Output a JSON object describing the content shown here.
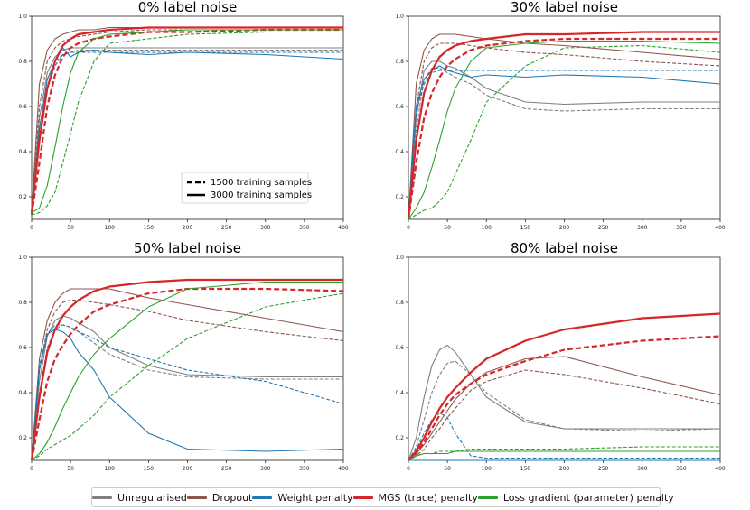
{
  "legend": {
    "items": [
      {
        "label": "Unregularised",
        "color": "#7f7f7f"
      },
      {
        "label": "Dropout",
        "color": "#8c564b"
      },
      {
        "label": "Weight penalty",
        "color": "#1f77b4"
      },
      {
        "label": "MGS (trace) penalty",
        "color": "#d62728"
      },
      {
        "label": "Loss gradient (parameter) penalty",
        "color": "#2ca02c"
      }
    ]
  },
  "style_legend": {
    "dashed": "1500 training samples",
    "solid": "3000 training samples"
  },
  "chart_data": [
    {
      "type": "line",
      "title": "0% label noise",
      "xlim": [
        0,
        400
      ],
      "ylim": [
        0.1,
        1.0
      ],
      "xticks": [
        0,
        50,
        100,
        150,
        200,
        250,
        300,
        350,
        400
      ],
      "yticks": [
        0.2,
        0.4,
        0.6,
        0.8,
        1.0
      ],
      "x": [
        0,
        10,
        20,
        30,
        40,
        50,
        60,
        80,
        100,
        150,
        200,
        300,
        400
      ],
      "series": [
        {
          "name": "Unregularised",
          "samples": 3000,
          "style": "solid",
          "values": [
            0.13,
            0.55,
            0.75,
            0.82,
            0.85,
            0.86,
            0.86,
            0.86,
            0.86,
            0.86,
            0.86,
            0.86,
            0.86
          ]
        },
        {
          "name": "Unregularised",
          "samples": 1500,
          "style": "dashed",
          "values": [
            0.12,
            0.5,
            0.72,
            0.8,
            0.83,
            0.84,
            0.85,
            0.85,
            0.85,
            0.85,
            0.85,
            0.85,
            0.85
          ]
        },
        {
          "name": "Dropout",
          "samples": 3000,
          "style": "solid",
          "values": [
            0.13,
            0.7,
            0.85,
            0.9,
            0.92,
            0.93,
            0.94,
            0.94,
            0.95,
            0.95,
            0.95,
            0.95,
            0.95
          ]
        },
        {
          "name": "Dropout",
          "samples": 1500,
          "style": "dashed",
          "values": [
            0.12,
            0.6,
            0.8,
            0.86,
            0.89,
            0.9,
            0.91,
            0.92,
            0.93,
            0.94,
            0.94,
            0.94,
            0.94
          ]
        },
        {
          "name": "Weight penalty",
          "samples": 3000,
          "style": "solid",
          "values": [
            0.13,
            0.5,
            0.72,
            0.8,
            0.86,
            0.82,
            0.84,
            0.85,
            0.84,
            0.83,
            0.84,
            0.83,
            0.81
          ]
        },
        {
          "name": "Weight penalty",
          "samples": 1500,
          "style": "dashed",
          "values": [
            0.12,
            0.45,
            0.68,
            0.78,
            0.83,
            0.84,
            0.84,
            0.84,
            0.84,
            0.84,
            0.84,
            0.84,
            0.84
          ]
        },
        {
          "name": "MGS (trace) penalty",
          "samples": 3000,
          "style": "solid",
          "values": [
            0.13,
            0.45,
            0.68,
            0.8,
            0.87,
            0.9,
            0.92,
            0.93,
            0.94,
            0.95,
            0.95,
            0.95,
            0.95
          ]
        },
        {
          "name": "MGS (trace) penalty",
          "samples": 1500,
          "style": "dashed",
          "values": [
            0.12,
            0.35,
            0.6,
            0.74,
            0.82,
            0.86,
            0.88,
            0.9,
            0.91,
            0.93,
            0.93,
            0.94,
            0.94
          ]
        },
        {
          "name": "Loss gradient (parameter) penalty",
          "samples": 3000,
          "style": "solid",
          "values": [
            0.13,
            0.15,
            0.25,
            0.42,
            0.6,
            0.75,
            0.84,
            0.9,
            0.92,
            0.93,
            0.94,
            0.94,
            0.94
          ]
        },
        {
          "name": "Loss gradient (parameter) penalty",
          "samples": 1500,
          "style": "dashed",
          "values": [
            0.12,
            0.13,
            0.16,
            0.22,
            0.35,
            0.48,
            0.62,
            0.8,
            0.88,
            0.9,
            0.92,
            0.93,
            0.93
          ]
        }
      ]
    },
    {
      "type": "line",
      "title": "30% label noise",
      "xlim": [
        0,
        400
      ],
      "ylim": [
        0.1,
        1.0
      ],
      "xticks": [
        0,
        50,
        100,
        150,
        200,
        250,
        300,
        350,
        400
      ],
      "yticks": [
        0.2,
        0.4,
        0.6,
        0.8,
        1.0
      ],
      "x": [
        0,
        10,
        20,
        30,
        40,
        50,
        60,
        80,
        100,
        150,
        200,
        300,
        400
      ],
      "series": [
        {
          "name": "Unregularised",
          "samples": 3000,
          "style": "solid",
          "values": [
            0.1,
            0.55,
            0.76,
            0.8,
            0.8,
            0.78,
            0.77,
            0.73,
            0.68,
            0.62,
            0.61,
            0.62,
            0.62
          ]
        },
        {
          "name": "Unregularised",
          "samples": 1500,
          "style": "dashed",
          "values": [
            0.1,
            0.5,
            0.72,
            0.77,
            0.77,
            0.75,
            0.73,
            0.7,
            0.65,
            0.59,
            0.58,
            0.59,
            0.59
          ]
        },
        {
          "name": "Dropout",
          "samples": 3000,
          "style": "solid",
          "values": [
            0.1,
            0.7,
            0.85,
            0.9,
            0.92,
            0.92,
            0.92,
            0.91,
            0.9,
            0.88,
            0.87,
            0.84,
            0.81
          ]
        },
        {
          "name": "Dropout",
          "samples": 1500,
          "style": "dashed",
          "values": [
            0.1,
            0.6,
            0.8,
            0.86,
            0.88,
            0.88,
            0.88,
            0.87,
            0.86,
            0.84,
            0.83,
            0.8,
            0.78
          ]
        },
        {
          "name": "Weight penalty",
          "samples": 3000,
          "style": "solid",
          "values": [
            0.1,
            0.6,
            0.72,
            0.76,
            0.78,
            0.76,
            0.75,
            0.73,
            0.74,
            0.73,
            0.74,
            0.73,
            0.7
          ]
        },
        {
          "name": "Weight penalty",
          "samples": 1500,
          "style": "dashed",
          "values": [
            0.1,
            0.58,
            0.7,
            0.75,
            0.76,
            0.76,
            0.76,
            0.76,
            0.76,
            0.76,
            0.76,
            0.76,
            0.76
          ]
        },
        {
          "name": "MGS (trace) penalty",
          "samples": 3000,
          "style": "solid",
          "values": [
            0.1,
            0.45,
            0.66,
            0.76,
            0.82,
            0.85,
            0.87,
            0.89,
            0.9,
            0.92,
            0.92,
            0.93,
            0.93
          ]
        },
        {
          "name": "MGS (trace) penalty",
          "samples": 1500,
          "style": "dashed",
          "values": [
            0.1,
            0.35,
            0.55,
            0.66,
            0.73,
            0.78,
            0.81,
            0.85,
            0.87,
            0.89,
            0.9,
            0.9,
            0.9
          ]
        },
        {
          "name": "Loss gradient (parameter) penalty",
          "samples": 3000,
          "style": "solid",
          "values": [
            0.1,
            0.15,
            0.22,
            0.33,
            0.45,
            0.58,
            0.68,
            0.8,
            0.86,
            0.88,
            0.89,
            0.89,
            0.88
          ]
        },
        {
          "name": "Loss gradient (parameter) penalty",
          "samples": 1500,
          "style": "dashed",
          "values": [
            0.1,
            0.12,
            0.14,
            0.15,
            0.18,
            0.22,
            0.3,
            0.45,
            0.62,
            0.78,
            0.86,
            0.87,
            0.84
          ]
        }
      ]
    },
    {
      "type": "line",
      "title": "50% label noise",
      "xlim": [
        0,
        400
      ],
      "ylim": [
        0.1,
        1.0
      ],
      "xticks": [
        0,
        50,
        100,
        150,
        200,
        250,
        300,
        350,
        400
      ],
      "yticks": [
        0.2,
        0.4,
        0.6,
        0.8,
        1.0
      ],
      "x": [
        0,
        10,
        20,
        30,
        40,
        50,
        60,
        80,
        100,
        150,
        200,
        300,
        400
      ],
      "series": [
        {
          "name": "Unregularised",
          "samples": 3000,
          "style": "solid",
          "values": [
            0.1,
            0.45,
            0.65,
            0.72,
            0.74,
            0.73,
            0.71,
            0.67,
            0.6,
            0.52,
            0.48,
            0.47,
            0.47
          ]
        },
        {
          "name": "Unregularised",
          "samples": 1500,
          "style": "dashed",
          "values": [
            0.1,
            0.4,
            0.6,
            0.68,
            0.7,
            0.69,
            0.67,
            0.62,
            0.57,
            0.5,
            0.47,
            0.46,
            0.46
          ]
        },
        {
          "name": "Dropout",
          "samples": 3000,
          "style": "solid",
          "values": [
            0.1,
            0.55,
            0.72,
            0.8,
            0.84,
            0.86,
            0.86,
            0.86,
            0.86,
            0.82,
            0.79,
            0.73,
            0.67
          ]
        },
        {
          "name": "Dropout",
          "samples": 1500,
          "style": "dashed",
          "values": [
            0.1,
            0.5,
            0.68,
            0.76,
            0.8,
            0.81,
            0.81,
            0.8,
            0.79,
            0.76,
            0.72,
            0.67,
            0.63
          ]
        },
        {
          "name": "Weight penalty",
          "samples": 3000,
          "style": "solid",
          "values": [
            0.1,
            0.5,
            0.66,
            0.68,
            0.67,
            0.64,
            0.58,
            0.5,
            0.38,
            0.22,
            0.15,
            0.14,
            0.15
          ]
        },
        {
          "name": "Weight penalty",
          "samples": 1500,
          "style": "dashed",
          "values": [
            0.1,
            0.52,
            0.66,
            0.7,
            0.7,
            0.69,
            0.67,
            0.64,
            0.6,
            0.55,
            0.5,
            0.45,
            0.35
          ]
        },
        {
          "name": "MGS (trace) penalty",
          "samples": 3000,
          "style": "solid",
          "values": [
            0.1,
            0.38,
            0.58,
            0.68,
            0.74,
            0.78,
            0.81,
            0.85,
            0.87,
            0.89,
            0.9,
            0.9,
            0.9
          ]
        },
        {
          "name": "MGS (trace) penalty",
          "samples": 1500,
          "style": "dashed",
          "values": [
            0.1,
            0.28,
            0.45,
            0.55,
            0.61,
            0.66,
            0.7,
            0.76,
            0.79,
            0.84,
            0.86,
            0.86,
            0.85
          ]
        },
        {
          "name": "Loss gradient (parameter) penalty",
          "samples": 3000,
          "style": "solid",
          "values": [
            0.1,
            0.13,
            0.18,
            0.25,
            0.33,
            0.4,
            0.47,
            0.57,
            0.64,
            0.78,
            0.86,
            0.89,
            0.89
          ]
        },
        {
          "name": "Loss gradient (parameter) penalty",
          "samples": 1500,
          "style": "dashed",
          "values": [
            0.1,
            0.12,
            0.15,
            0.17,
            0.19,
            0.21,
            0.24,
            0.3,
            0.38,
            0.52,
            0.64,
            0.78,
            0.84
          ]
        }
      ]
    },
    {
      "type": "line",
      "title": "80% label noise",
      "xlim": [
        0,
        400
      ],
      "ylim": [
        0.1,
        1.0
      ],
      "xticks": [
        0,
        50,
        100,
        150,
        200,
        250,
        300,
        350,
        400
      ],
      "yticks": [
        0.2,
        0.4,
        0.6,
        0.8,
        1.0
      ],
      "x": [
        0,
        10,
        20,
        30,
        40,
        50,
        60,
        80,
        100,
        150,
        200,
        300,
        400
      ],
      "series": [
        {
          "name": "Unregularised",
          "samples": 3000,
          "style": "solid",
          "values": [
            0.1,
            0.2,
            0.38,
            0.52,
            0.59,
            0.61,
            0.58,
            0.48,
            0.38,
            0.27,
            0.24,
            0.24,
            0.24
          ]
        },
        {
          "name": "Unregularised",
          "samples": 1500,
          "style": "dashed",
          "values": [
            0.1,
            0.16,
            0.28,
            0.4,
            0.48,
            0.53,
            0.54,
            0.48,
            0.4,
            0.28,
            0.24,
            0.23,
            0.24
          ]
        },
        {
          "name": "Dropout",
          "samples": 3000,
          "style": "solid",
          "values": [
            0.1,
            0.13,
            0.17,
            0.22,
            0.27,
            0.32,
            0.37,
            0.44,
            0.49,
            0.55,
            0.56,
            0.47,
            0.39
          ]
        },
        {
          "name": "Dropout",
          "samples": 1500,
          "style": "dashed",
          "values": [
            0.1,
            0.12,
            0.15,
            0.2,
            0.24,
            0.29,
            0.33,
            0.41,
            0.45,
            0.5,
            0.48,
            0.42,
            0.35
          ]
        },
        {
          "name": "Weight penalty",
          "samples": 3000,
          "style": "solid",
          "values": [
            0.1,
            0.1,
            0.1,
            0.1,
            0.1,
            0.1,
            0.1,
            0.1,
            0.1,
            0.1,
            0.1,
            0.1,
            0.1
          ]
        },
        {
          "name": "Weight penalty",
          "samples": 1500,
          "style": "dashed",
          "values": [
            0.1,
            0.15,
            0.22,
            0.28,
            0.31,
            0.29,
            0.22,
            0.12,
            0.11,
            0.11,
            0.11,
            0.11,
            0.11
          ]
        },
        {
          "name": "MGS (trace) penalty",
          "samples": 3000,
          "style": "solid",
          "values": [
            0.1,
            0.14,
            0.2,
            0.27,
            0.33,
            0.38,
            0.42,
            0.49,
            0.55,
            0.63,
            0.68,
            0.73,
            0.75
          ]
        },
        {
          "name": "MGS (trace) penalty",
          "samples": 1500,
          "style": "dashed",
          "values": [
            0.1,
            0.13,
            0.18,
            0.24,
            0.3,
            0.35,
            0.39,
            0.44,
            0.48,
            0.54,
            0.59,
            0.63,
            0.65
          ]
        },
        {
          "name": "Loss gradient (parameter) penalty",
          "samples": 3000,
          "style": "solid",
          "values": [
            0.1,
            0.12,
            0.13,
            0.13,
            0.13,
            0.13,
            0.14,
            0.14,
            0.14,
            0.14,
            0.14,
            0.14,
            0.14
          ]
        },
        {
          "name": "Loss gradient (parameter) penalty",
          "samples": 1500,
          "style": "dashed",
          "values": [
            0.1,
            0.12,
            0.13,
            0.13,
            0.14,
            0.14,
            0.14,
            0.15,
            0.15,
            0.15,
            0.15,
            0.16,
            0.16
          ]
        }
      ]
    }
  ]
}
